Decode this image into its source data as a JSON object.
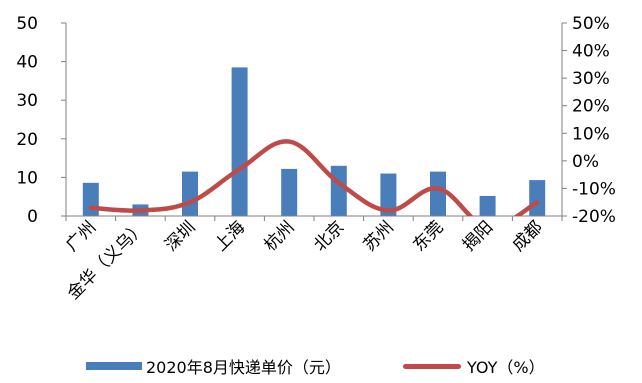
{
  "chart_data": {
    "type": "bar",
    "categories": [
      "广州",
      "金华（义乌）",
      "深圳",
      "上海",
      "杭州",
      "北京",
      "苏州",
      "东莞",
      "揭阳",
      "成都"
    ],
    "series": [
      {
        "name": "2020年8月快递单价（元）",
        "type": "bar",
        "axis": "left",
        "color": "#4a7ebb",
        "values": [
          8.6,
          3.0,
          11.5,
          38.5,
          12.2,
          13.0,
          11.0,
          11.5,
          5.2,
          9.3
        ]
      },
      {
        "name": "YOY（%）",
        "type": "line",
        "axis": "right",
        "color": "#be4b48",
        "values": [
          -17,
          -18,
          -15,
          -3,
          7,
          -8,
          -18,
          -10,
          -24,
          -15
        ]
      }
    ],
    "y_left": {
      "min": 0,
      "max": 50,
      "ticks": [
        "0",
        "10",
        "20",
        "30",
        "40",
        "50"
      ]
    },
    "y_right": {
      "min": -20,
      "max": 50,
      "ticks": [
        "-20%",
        "-10%",
        "0%",
        "10%",
        "20%",
        "30%",
        "40%",
        "50%"
      ]
    },
    "legend_position": "bottom",
    "grid": false
  }
}
